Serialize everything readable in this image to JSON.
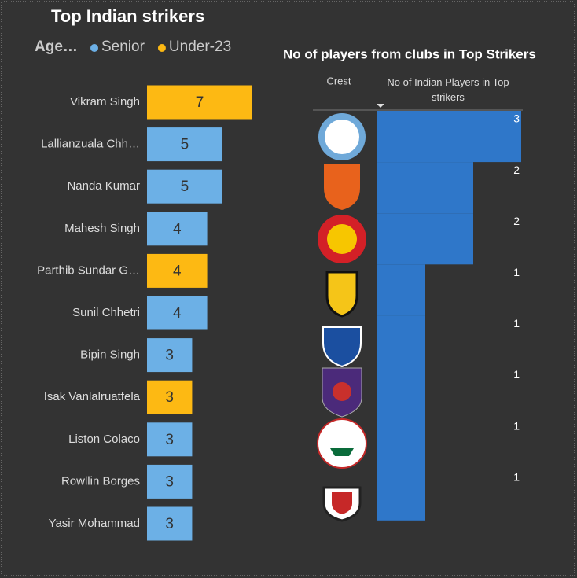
{
  "chart_data": [
    {
      "type": "bar",
      "orientation": "horizontal",
      "title": "Top Indian strikers",
      "legend_title": "Age…",
      "categories": [
        "Vikram Singh",
        "Lallianzuala Chh…",
        "Nanda Kumar",
        "Mahesh Singh",
        "Parthib Sundar G…",
        "Sunil Chhetri",
        "Bipin Singh",
        "Isak Vanlalruatfela",
        "Liston Colaco",
        "Rowllin Borges",
        "Yasir Mohammad"
      ],
      "series": [
        {
          "name": "Senior",
          "color": "#6cb0e6",
          "values": [
            null,
            5,
            5,
            4,
            null,
            4,
            3,
            null,
            3,
            3,
            3
          ]
        },
        {
          "name": "Under-23",
          "color": "#fdb913",
          "values": [
            7,
            null,
            null,
            null,
            4,
            null,
            null,
            3,
            null,
            null,
            null
          ]
        }
      ]
    },
    {
      "type": "bar",
      "orientation": "horizontal",
      "title": "No of players from clubs in Top Strikers",
      "column_headers": [
        "Crest",
        "No of Indian Players in Top strikers"
      ],
      "values": [
        3,
        2,
        2,
        1,
        1,
        1,
        1,
        1
      ],
      "color": "#2f77c9"
    }
  ]
}
